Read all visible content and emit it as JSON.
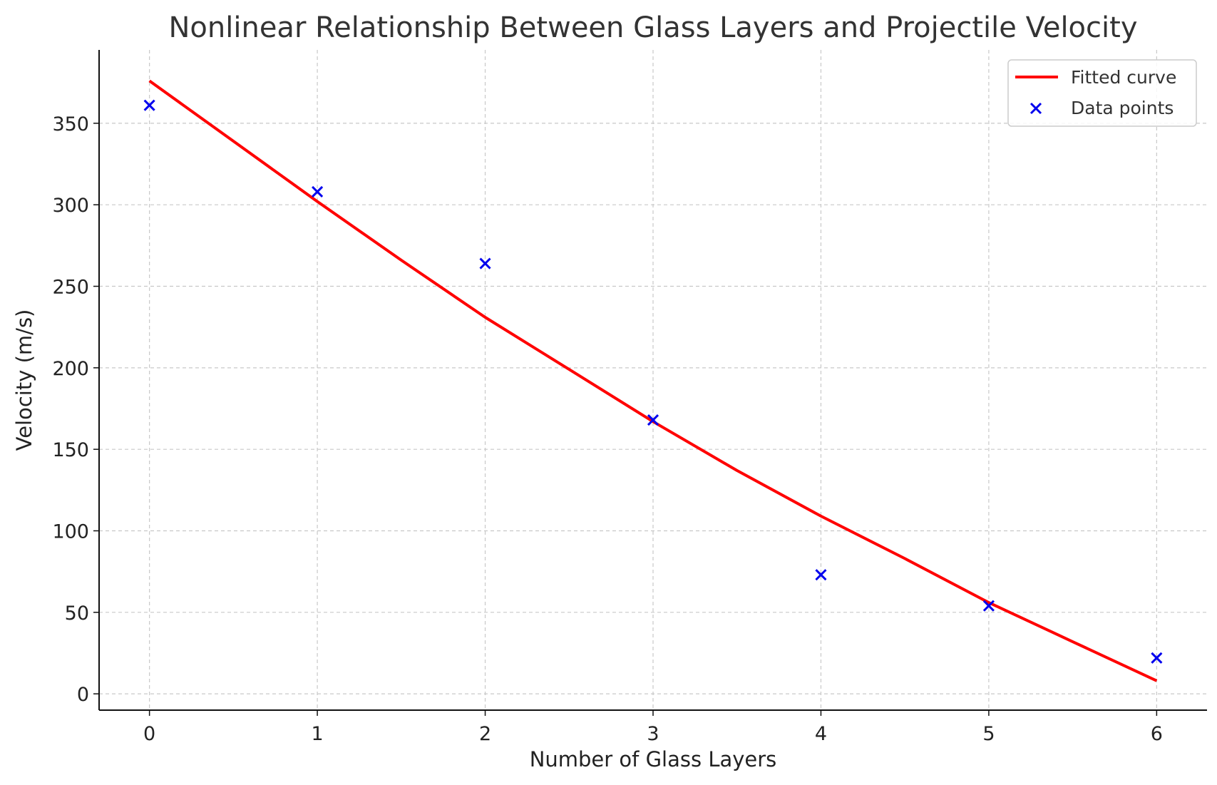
{
  "chart_data": {
    "type": "scatter",
    "title": "Nonlinear Relationship Between Glass Layers and Projectile Velocity",
    "xlabel": "Number of Glass Layers",
    "ylabel": "Velocity (m/s)",
    "xlim": [
      -0.3,
      6.3
    ],
    "ylim": [
      -10,
      395
    ],
    "xticks": [
      0,
      1,
      2,
      3,
      4,
      5,
      6
    ],
    "yticks": [
      0,
      50,
      100,
      150,
      200,
      250,
      300,
      350
    ],
    "grid": true,
    "legend_position": "top-right",
    "series": [
      {
        "name": "Fitted curve",
        "kind": "line",
        "color": "#ff0000",
        "x": [
          0,
          0.5,
          1,
          1.5,
          2,
          2.5,
          3,
          3.5,
          4,
          4.5,
          5,
          5.5,
          6
        ],
        "y": [
          376,
          339,
          302,
          266,
          231,
          199,
          167,
          137,
          109,
          83,
          56,
          32,
          8
        ]
      },
      {
        "name": "Data points",
        "kind": "scatter",
        "marker": "x",
        "color": "#0000ee",
        "x": [
          0,
          1,
          2,
          3,
          4,
          5,
          6
        ],
        "y": [
          361,
          308,
          264,
          168,
          73,
          54,
          22
        ]
      }
    ]
  }
}
